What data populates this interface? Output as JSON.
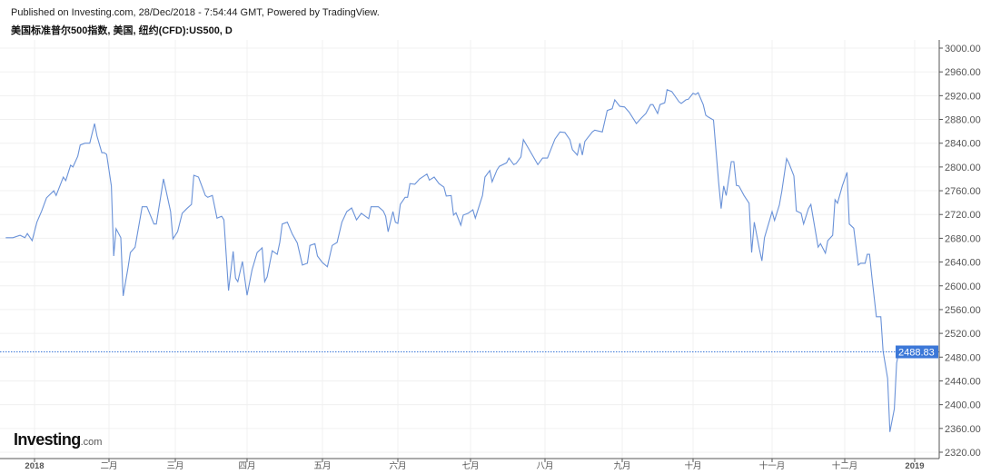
{
  "header": {
    "published": "Published on Investing.com, 28/Dec/2018 - 7:54:44 GMT, Powered by TradingView.",
    "symbol": "美国标准普尔500指数, 美国, 纽约(CFD):US500, D"
  },
  "logo": {
    "text": "Investing",
    "suffix": ".com"
  },
  "colors": {
    "line": "#6a92d8",
    "price_label_bg": "#3c78d8",
    "grid": "#f0f0f0",
    "axis": "#555555"
  },
  "chart_data": {
    "type": "line",
    "title": "",
    "grid": true,
    "ylim": [
      2300,
      3010
    ],
    "y_ticks": [
      "2320.00",
      "2360.00",
      "2400.00",
      "2440.00",
      "2480.00",
      "2520.00",
      "2560.00",
      "2600.00",
      "2640.00",
      "2680.00",
      "2720.00",
      "2760.00",
      "2800.00",
      "2840.00",
      "2880.00",
      "2920.00",
      "2960.00",
      "3000.00"
    ],
    "x_ticks": [
      {
        "label": "2018",
        "date": "2018-01-01",
        "bold": true
      },
      {
        "label": "二月",
        "date": "2018-02-01"
      },
      {
        "label": "三月",
        "date": "2018-03-01"
      },
      {
        "label": "四月",
        "date": "2018-04-01"
      },
      {
        "label": "五月",
        "date": "2018-05-01"
      },
      {
        "label": "六月",
        "date": "2018-06-01"
      },
      {
        "label": "七月",
        "date": "2018-07-01"
      },
      {
        "label": "八月",
        "date": "2018-08-01"
      },
      {
        "label": "九月",
        "date": "2018-09-01"
      },
      {
        "label": "十月",
        "date": "2018-10-01"
      },
      {
        "label": "十一月",
        "date": "2018-11-01"
      },
      {
        "label": "十二月",
        "date": "2018-12-01"
      },
      {
        "label": "2019",
        "date": "2019-01-01",
        "bold": true
      }
    ],
    "last_price": 2488.83,
    "last_price_label": "2488.83",
    "series": [
      {
        "points": [
          [
            "2017-12-20",
            2681
          ],
          [
            "2017-12-23",
            2681
          ],
          [
            "2017-12-26",
            2685
          ],
          [
            "2017-12-28",
            2681
          ],
          [
            "2017-12-29",
            2688
          ],
          [
            "2017-12-31",
            2676
          ],
          [
            "2018-01-02",
            2707
          ],
          [
            "2018-01-04",
            2726
          ],
          [
            "2018-01-06",
            2748
          ],
          [
            "2018-01-09",
            2760
          ],
          [
            "2018-01-10",
            2752
          ],
          [
            "2018-01-13",
            2783
          ],
          [
            "2018-01-14",
            2777
          ],
          [
            "2018-01-16",
            2803
          ],
          [
            "2018-01-17",
            2800
          ],
          [
            "2018-01-19",
            2818
          ],
          [
            "2018-01-20",
            2837
          ],
          [
            "2018-01-22",
            2840
          ],
          [
            "2018-01-24",
            2840
          ],
          [
            "2018-01-26",
            2873
          ],
          [
            "2018-01-27",
            2852
          ],
          [
            "2018-01-29",
            2824
          ],
          [
            "2018-01-30",
            2824
          ],
          [
            "2018-01-31",
            2821
          ],
          [
            "2018-02-02",
            2768
          ],
          [
            "2018-02-03",
            2650
          ],
          [
            "2018-02-04",
            2696
          ],
          [
            "2018-02-06",
            2681
          ],
          [
            "2018-02-07",
            2583
          ],
          [
            "2018-02-09",
            2630
          ],
          [
            "2018-02-10",
            2656
          ],
          [
            "2018-02-12",
            2665
          ],
          [
            "2018-02-15",
            2733
          ],
          [
            "2018-02-17",
            2733
          ],
          [
            "2018-02-20",
            2704
          ],
          [
            "2018-02-21",
            2704
          ],
          [
            "2018-02-24",
            2780
          ],
          [
            "2018-02-27",
            2725
          ],
          [
            "2018-02-28",
            2679
          ],
          [
            "2018-03-02",
            2691
          ],
          [
            "2018-03-04",
            2722
          ],
          [
            "2018-03-06",
            2730
          ],
          [
            "2018-03-08",
            2737
          ],
          [
            "2018-03-09",
            2786
          ],
          [
            "2018-03-11",
            2783
          ],
          [
            "2018-03-14",
            2752
          ],
          [
            "2018-03-15",
            2749
          ],
          [
            "2018-03-17",
            2752
          ],
          [
            "2018-03-19",
            2714
          ],
          [
            "2018-03-21",
            2717
          ],
          [
            "2018-03-22",
            2711
          ],
          [
            "2018-03-24",
            2592
          ],
          [
            "2018-03-26",
            2658
          ],
          [
            "2018-03-27",
            2613
          ],
          [
            "2018-03-28",
            2607
          ],
          [
            "2018-03-30",
            2641
          ],
          [
            "2018-04-01",
            2584
          ],
          [
            "2018-04-03",
            2627
          ],
          [
            "2018-04-05",
            2656
          ],
          [
            "2018-04-07",
            2664
          ],
          [
            "2018-04-08",
            2607
          ],
          [
            "2018-04-09",
            2615
          ],
          [
            "2018-04-11",
            2659
          ],
          [
            "2018-04-13",
            2653
          ],
          [
            "2018-04-14",
            2673
          ],
          [
            "2018-04-15",
            2704
          ],
          [
            "2018-04-17",
            2707
          ],
          [
            "2018-04-19",
            2687
          ],
          [
            "2018-04-21",
            2672
          ],
          [
            "2018-04-23",
            2635
          ],
          [
            "2018-04-25",
            2638
          ],
          [
            "2018-04-26",
            2668
          ],
          [
            "2018-04-28",
            2671
          ],
          [
            "2018-04-29",
            2650
          ],
          [
            "2018-05-01",
            2639
          ],
          [
            "2018-05-03",
            2632
          ],
          [
            "2018-05-05",
            2668
          ],
          [
            "2018-05-07",
            2673
          ],
          [
            "2018-05-09",
            2707
          ],
          [
            "2018-05-11",
            2725
          ],
          [
            "2018-05-13",
            2731
          ],
          [
            "2018-05-15",
            2711
          ],
          [
            "2018-05-17",
            2722
          ],
          [
            "2018-05-20",
            2713
          ],
          [
            "2018-05-21",
            2733
          ],
          [
            "2018-05-24",
            2733
          ],
          [
            "2018-05-26",
            2726
          ],
          [
            "2018-05-27",
            2717
          ],
          [
            "2018-05-28",
            2691
          ],
          [
            "2018-05-30",
            2725
          ],
          [
            "2018-05-31",
            2707
          ],
          [
            "2018-06-01",
            2705
          ],
          [
            "2018-06-02",
            2737
          ],
          [
            "2018-06-04",
            2749
          ],
          [
            "2018-06-05",
            2749
          ],
          [
            "2018-06-06",
            2772
          ],
          [
            "2018-06-08",
            2771
          ],
          [
            "2018-06-10",
            2780
          ],
          [
            "2018-06-13",
            2788
          ],
          [
            "2018-06-14",
            2778
          ],
          [
            "2018-06-16",
            2783
          ],
          [
            "2018-06-18",
            2772
          ],
          [
            "2018-06-20",
            2766
          ],
          [
            "2018-06-21",
            2751
          ],
          [
            "2018-06-23",
            2752
          ],
          [
            "2018-06-24",
            2719
          ],
          [
            "2018-06-25",
            2723
          ],
          [
            "2018-06-27",
            2702
          ],
          [
            "2018-06-28",
            2719
          ],
          [
            "2018-06-30",
            2722
          ],
          [
            "2018-07-02",
            2728
          ],
          [
            "2018-07-03",
            2714
          ],
          [
            "2018-07-06",
            2752
          ],
          [
            "2018-07-07",
            2783
          ],
          [
            "2018-07-09",
            2794
          ],
          [
            "2018-07-10",
            2775
          ],
          [
            "2018-07-12",
            2795
          ],
          [
            "2018-07-13",
            2801
          ],
          [
            "2018-07-16",
            2807
          ],
          [
            "2018-07-17",
            2815
          ],
          [
            "2018-07-19",
            2804
          ],
          [
            "2018-07-20",
            2806
          ],
          [
            "2018-07-22",
            2817
          ],
          [
            "2018-07-23",
            2846
          ],
          [
            "2018-07-25",
            2832
          ],
          [
            "2018-07-29",
            2804
          ],
          [
            "2018-07-31",
            2815
          ],
          [
            "2018-08-02",
            2815
          ],
          [
            "2018-08-05",
            2847
          ],
          [
            "2018-08-07",
            2859
          ],
          [
            "2018-08-09",
            2858
          ],
          [
            "2018-08-11",
            2846
          ],
          [
            "2018-08-12",
            2829
          ],
          [
            "2018-08-14",
            2820
          ],
          [
            "2018-08-15",
            2840
          ],
          [
            "2018-08-16",
            2820
          ],
          [
            "2018-08-17",
            2843
          ],
          [
            "2018-08-20",
            2859
          ],
          [
            "2018-08-21",
            2862
          ],
          [
            "2018-08-24",
            2859
          ],
          [
            "2018-08-26",
            2895
          ],
          [
            "2018-08-28",
            2898
          ],
          [
            "2018-08-29",
            2913
          ],
          [
            "2018-08-31",
            2902
          ],
          [
            "2018-09-02",
            2901
          ],
          [
            "2018-09-04",
            2892
          ],
          [
            "2018-09-07",
            2873
          ],
          [
            "2018-09-09",
            2882
          ],
          [
            "2018-09-11",
            2890
          ],
          [
            "2018-09-13",
            2905
          ],
          [
            "2018-09-14",
            2905
          ],
          [
            "2018-09-16",
            2890
          ],
          [
            "2018-09-17",
            2905
          ],
          [
            "2018-09-19",
            2908
          ],
          [
            "2018-09-20",
            2930
          ],
          [
            "2018-09-22",
            2927
          ],
          [
            "2018-09-25",
            2910
          ],
          [
            "2018-09-26",
            2907
          ],
          [
            "2018-09-28",
            2913
          ],
          [
            "2018-09-29",
            2914
          ],
          [
            "2018-10-01",
            2924
          ],
          [
            "2018-10-02",
            2922
          ],
          [
            "2018-10-03",
            2925
          ],
          [
            "2018-10-05",
            2905
          ],
          [
            "2018-10-06",
            2887
          ],
          [
            "2018-10-07",
            2884
          ],
          [
            "2018-10-09",
            2879
          ],
          [
            "2018-10-11",
            2775
          ],
          [
            "2018-10-12",
            2730
          ],
          [
            "2018-10-13",
            2768
          ],
          [
            "2018-10-14",
            2752
          ],
          [
            "2018-10-16",
            2809
          ],
          [
            "2018-10-17",
            2809
          ],
          [
            "2018-10-18",
            2769
          ],
          [
            "2018-10-19",
            2768
          ],
          [
            "2018-10-21",
            2752
          ],
          [
            "2018-10-23",
            2739
          ],
          [
            "2018-10-24",
            2656
          ],
          [
            "2018-10-25",
            2707
          ],
          [
            "2018-10-27",
            2662
          ],
          [
            "2018-10-28",
            2642
          ],
          [
            "2018-10-29",
            2681
          ],
          [
            "2018-10-31",
            2710
          ],
          [
            "2018-11-01",
            2725
          ],
          [
            "2018-11-02",
            2710
          ],
          [
            "2018-11-04",
            2736
          ],
          [
            "2018-11-05",
            2759
          ],
          [
            "2018-11-07",
            2814
          ],
          [
            "2018-11-08",
            2806
          ],
          [
            "2018-11-10",
            2785
          ],
          [
            "2018-11-11",
            2726
          ],
          [
            "2018-11-13",
            2722
          ],
          [
            "2018-11-14",
            2704
          ],
          [
            "2018-11-16",
            2730
          ],
          [
            "2018-11-17",
            2737
          ],
          [
            "2018-11-20",
            2665
          ],
          [
            "2018-11-21",
            2671
          ],
          [
            "2018-11-23",
            2655
          ],
          [
            "2018-11-24",
            2676
          ],
          [
            "2018-11-26",
            2685
          ],
          [
            "2018-11-27",
            2745
          ],
          [
            "2018-11-28",
            2739
          ],
          [
            "2018-11-30",
            2768
          ],
          [
            "2018-12-02",
            2791
          ],
          [
            "2018-12-03",
            2704
          ],
          [
            "2018-12-05",
            2697
          ],
          [
            "2018-12-07",
            2635
          ],
          [
            "2018-12-08",
            2638
          ],
          [
            "2018-12-10",
            2638
          ],
          [
            "2018-12-11",
            2653
          ],
          [
            "2018-12-12",
            2653
          ],
          [
            "2018-12-13",
            2616
          ],
          [
            "2018-12-15",
            2548
          ],
          [
            "2018-12-17",
            2548
          ],
          [
            "2018-12-18",
            2490
          ],
          [
            "2018-12-20",
            2444
          ],
          [
            "2018-12-21",
            2354
          ],
          [
            "2018-12-23",
            2393
          ],
          [
            "2018-12-24",
            2470
          ],
          [
            "2018-12-25",
            2488.83
          ]
        ]
      }
    ]
  }
}
